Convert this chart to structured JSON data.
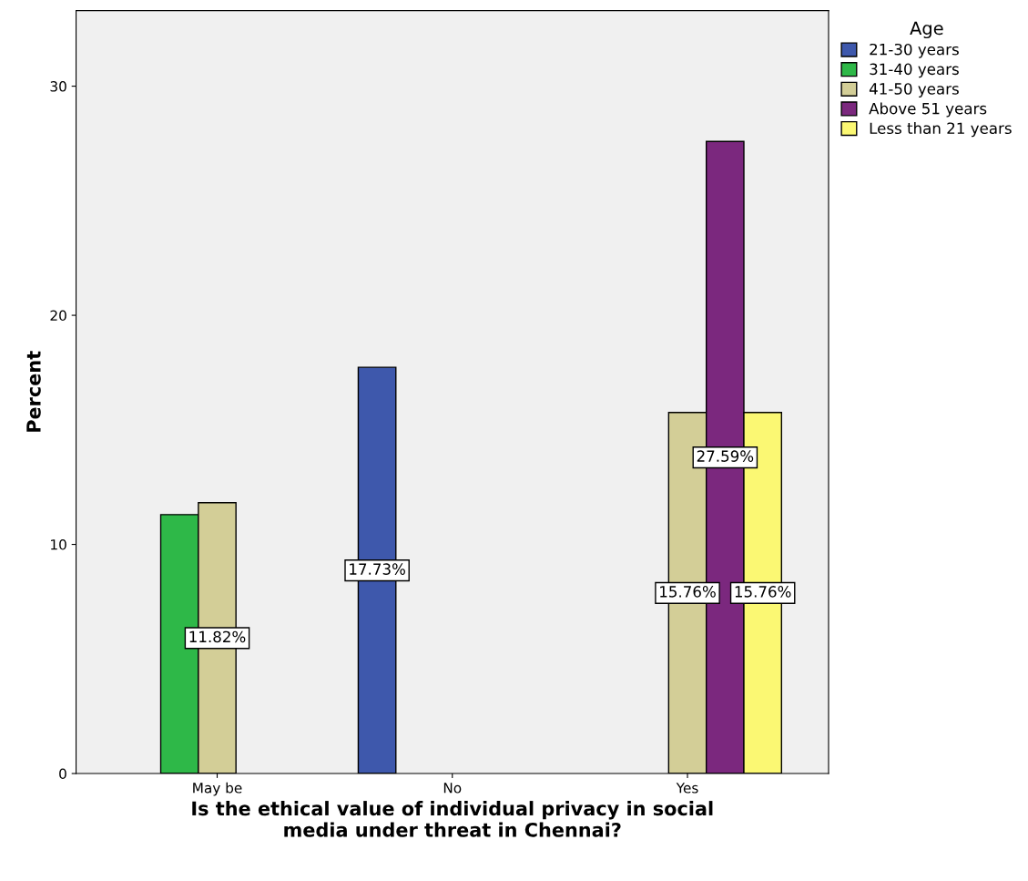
{
  "chart_data": {
    "type": "bar",
    "xlabel": "Is the ethical value of individual privacy in social\nmedia under threat in Chennai?",
    "ylabel": "Percent",
    "legend_title": "Age",
    "legend": "right",
    "categories": [
      "May be",
      "No",
      "Yes"
    ],
    "series": [
      {
        "name": "21-30 years",
        "color": "#3e58ac",
        "values": [
          null,
          17.73,
          null
        ],
        "value_labels": [
          null,
          "17.73%",
          null
        ]
      },
      {
        "name": "31-40 years",
        "color": "#2eb848",
        "values": [
          11.3,
          null,
          null
        ],
        "value_labels": [
          null,
          null,
          null
        ]
      },
      {
        "name": "41-50 years",
        "color": "#d3ce97",
        "values": [
          11.82,
          null,
          15.76
        ],
        "value_labels": [
          "11.82%",
          null,
          "15.76%"
        ]
      },
      {
        "name": "Above 51 years",
        "color": "#7b287e",
        "values": [
          null,
          null,
          27.59
        ],
        "value_labels": [
          null,
          null,
          "27.59%"
        ]
      },
      {
        "name": "Less than 21 years",
        "color": "#fbf873",
        "values": [
          null,
          null,
          15.76
        ],
        "value_labels": [
          null,
          null,
          "15.76%"
        ]
      }
    ],
    "ylim": [
      0,
      33.3
    ],
    "yticks": [
      0,
      10,
      20,
      30
    ],
    "grid": false
  }
}
